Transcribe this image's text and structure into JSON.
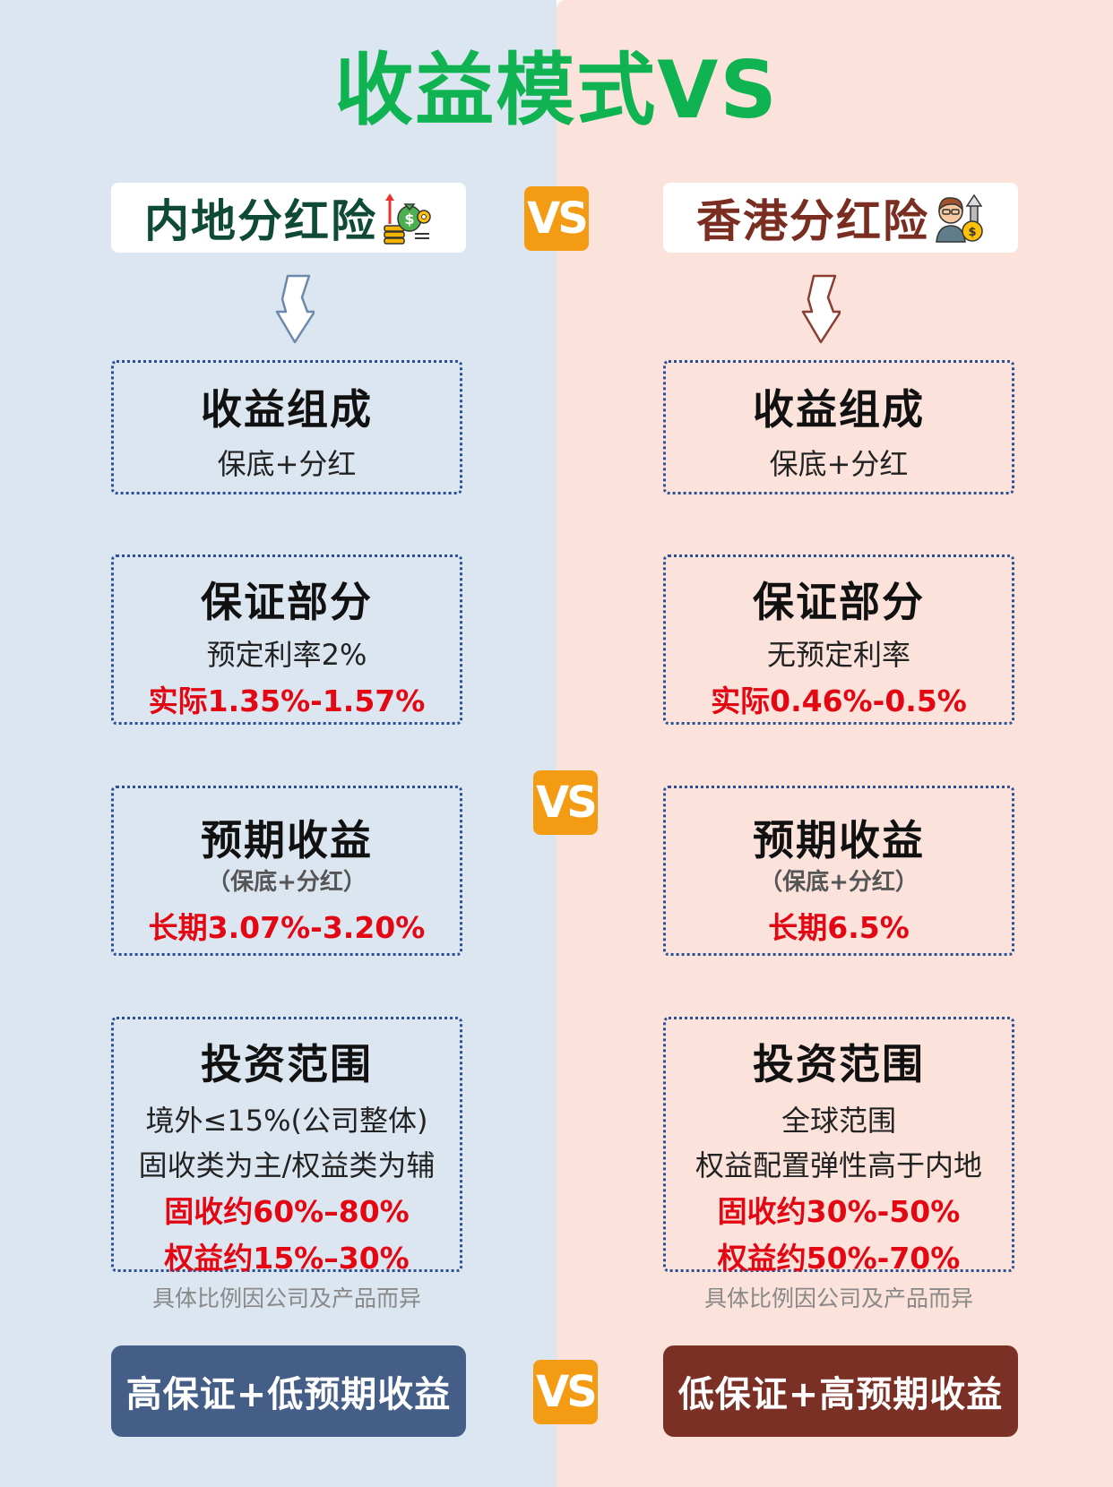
{
  "title": "收益模式VS",
  "vs_label": "VS",
  "left": {
    "header": "内地分红险",
    "header_icon": "money-bag-coins-icon",
    "arrow_color": "#6c89ad",
    "composition": {
      "title": "收益组成",
      "text": "保底+分红"
    },
    "guarantee": {
      "title": "保证部分",
      "text": "预定利率2%",
      "red": "实际1.35%-1.57%"
    },
    "expected": {
      "title": "预期收益",
      "sub": "（保底+分红）",
      "red": "长期3.07%-3.20%"
    },
    "investment": {
      "title": "投资范围",
      "line1": "境外≤15%(公司整体)",
      "line2": "固收类为主/权益类为辅",
      "red1": "固收约60%–80%",
      "red2": "权益约15%–30%"
    },
    "note": "具体比例因公司及产品而异",
    "bottom": "高保证+低预期收益",
    "bottom_color": "#455e87"
  },
  "right": {
    "header": "香港分红险",
    "header_icon": "person-coin-growth-icon",
    "arrow_color": "#8a3d30",
    "composition": {
      "title": "收益组成",
      "text": "保底+分红"
    },
    "guarantee": {
      "title": "保证部分",
      "text": "无预定利率",
      "red": "实际0.46%-0.5%"
    },
    "expected": {
      "title": "预期收益",
      "sub": "（保底+分红）",
      "red": "长期6.5%"
    },
    "investment": {
      "title": "投资范围",
      "line1": "全球范围",
      "line2": "权益配置弹性高于内地",
      "red1": "固收约30%-50%",
      "red2": "权益约50%-70%"
    },
    "note": "具体比例因公司及产品而异",
    "bottom": "低保证+高预期收益",
    "bottom_color": "#7b3026"
  },
  "colors": {
    "title": "#10b351",
    "vs_badge": "#f39b12",
    "highlight": "#e30613",
    "left_bg": "#dce6f1",
    "right_bg": "#fbe3dc"
  }
}
